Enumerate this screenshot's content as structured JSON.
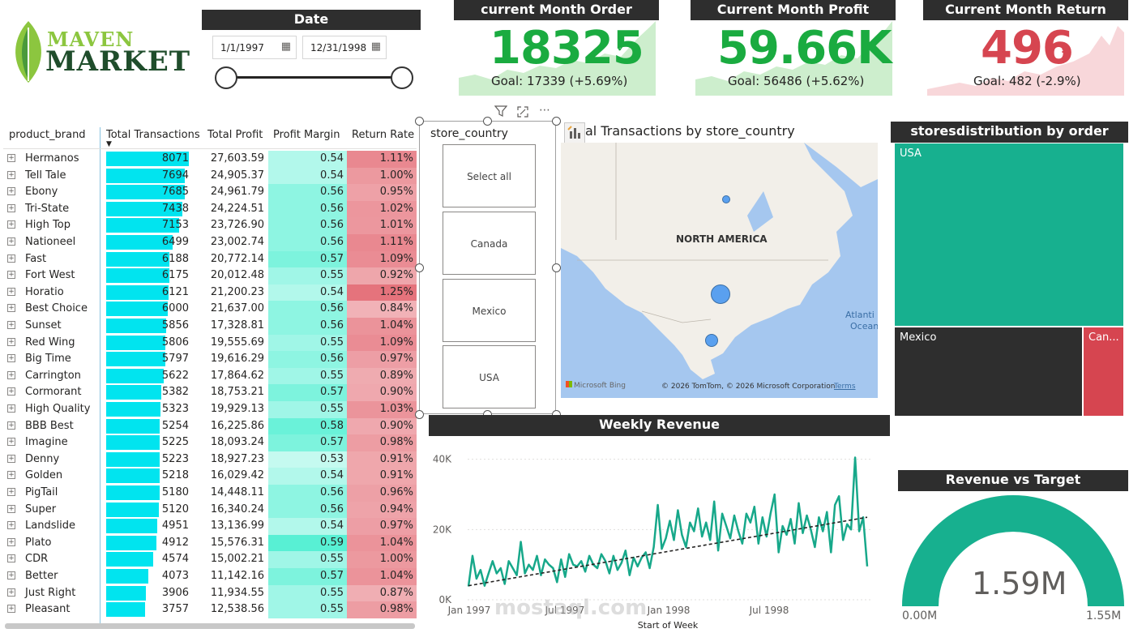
{
  "logo": {
    "line1": "MAVEN",
    "line2": "MARKET"
  },
  "date_slicer": {
    "title": "Date",
    "start": "1/1/1997",
    "end": "12/31/1998",
    "calendar_icon": "calendar-icon"
  },
  "kpis": [
    {
      "title": "current Month Order",
      "value": "18325",
      "status_mark": "✓",
      "goal": "Goal: 17339 (+5.69%)",
      "color": "#1aab40"
    },
    {
      "title": "Current Month Profit",
      "value": "59.66K",
      "status_mark": "✓",
      "goal": "Goal: 56486 (+5.62%)",
      "color": "#1aab40"
    },
    {
      "title": "Current Month Return",
      "value": "496",
      "status_mark": "!",
      "goal": "Goal: 482 (-2.9%)",
      "color": "#d64550"
    }
  ],
  "table": {
    "headers": [
      "product_brand",
      "Total Transactions",
      "Total Profit",
      "Profit Margin",
      "Return Rate"
    ],
    "sort_indicator": "▼",
    "expand_glyph": "+",
    "colors": {
      "bar": "#01e4ef",
      "margin": "#58f0d4",
      "return": "#e5737c"
    },
    "rows": [
      [
        "Hermanos",
        "8071",
        "27,603.59",
        "0.54",
        "1.11%"
      ],
      [
        "Tell Tale",
        "7694",
        "24,905.37",
        "0.54",
        "1.00%"
      ],
      [
        "Ebony",
        "7685",
        "24,961.79",
        "0.56",
        "0.95%"
      ],
      [
        "Tri-State",
        "7438",
        "24,224.51",
        "0.56",
        "1.02%"
      ],
      [
        "High Top",
        "7153",
        "23,726.90",
        "0.56",
        "1.01%"
      ],
      [
        "Nationeel",
        "6499",
        "23,002.74",
        "0.56",
        "1.11%"
      ],
      [
        "Fast",
        "6188",
        "20,772.14",
        "0.57",
        "1.09%"
      ],
      [
        "Fort West",
        "6175",
        "20,012.48",
        "0.55",
        "0.92%"
      ],
      [
        "Horatio",
        "6121",
        "21,200.23",
        "0.54",
        "1.25%"
      ],
      [
        "Best Choice",
        "6000",
        "21,637.00",
        "0.56",
        "0.84%"
      ],
      [
        "Sunset",
        "5856",
        "17,328.81",
        "0.56",
        "1.04%"
      ],
      [
        "Red Wing",
        "5806",
        "19,555.69",
        "0.55",
        "1.09%"
      ],
      [
        "Big Time",
        "5797",
        "19,616.29",
        "0.56",
        "0.97%"
      ],
      [
        "Carrington",
        "5622",
        "17,864.62",
        "0.55",
        "0.89%"
      ],
      [
        "Cormorant",
        "5382",
        "18,753.21",
        "0.57",
        "0.90%"
      ],
      [
        "High Quality",
        "5323",
        "19,929.13",
        "0.55",
        "1.03%"
      ],
      [
        "BBB Best",
        "5254",
        "16,225.86",
        "0.58",
        "0.90%"
      ],
      [
        "Imagine",
        "5225",
        "18,093.24",
        "0.57",
        "0.98%"
      ],
      [
        "Denny",
        "5223",
        "18,927.23",
        "0.53",
        "0.91%"
      ],
      [
        "Golden",
        "5218",
        "16,029.42",
        "0.54",
        "0.91%"
      ],
      [
        "PigTail",
        "5180",
        "14,448.11",
        "0.56",
        "0.96%"
      ],
      [
        "Super",
        "5120",
        "16,340.24",
        "0.56",
        "0.94%"
      ],
      [
        "Landslide",
        "4951",
        "13,136.99",
        "0.54",
        "0.97%"
      ],
      [
        "Plato",
        "4912",
        "15,576.31",
        "0.59",
        "1.04%"
      ],
      [
        "CDR",
        "4574",
        "15,002.21",
        "0.55",
        "1.00%"
      ],
      [
        "Better",
        "4073",
        "11,142.16",
        "0.57",
        "1.04%"
      ],
      [
        "Just Right",
        "3906",
        "11,934.55",
        "0.55",
        "0.87%"
      ],
      [
        "Pleasant",
        "3757",
        "12,538.56",
        "0.55",
        "0.98%"
      ]
    ]
  },
  "country_slicer": {
    "title": "store_country",
    "options": [
      "Select all",
      "Canada",
      "Mexico",
      "USA"
    ],
    "toolbar_icons": [
      "filter-icon",
      "focus-mode-icon",
      "more-options-icon"
    ]
  },
  "map": {
    "title": "al Transactions by store_country",
    "region_label": "NORTH AMERICA",
    "ocean_label_1": "Atlanti",
    "ocean_label_2": "Ocean",
    "credit_brand": "Microsoft Bing",
    "credit_text": "© 2026 TomTom, © 2026 Microsoft Corporation",
    "terms_link": "Terms"
  },
  "treemap": {
    "title": "storesdistribution by order",
    "items": [
      {
        "label": "USA",
        "color": "#17b08f"
      },
      {
        "label": "Mexico",
        "color": "#2e2e2e"
      },
      {
        "label": "Can...",
        "color": "#d64550"
      }
    ]
  },
  "gauge": {
    "title": "Revenue vs Target",
    "value_label": "1.59M",
    "min_label": "0.00M",
    "max_label": "1.55M",
    "fill_fraction": 1.0,
    "color": "#17b08f"
  },
  "watermark": "mostaql.com",
  "chart_data": {
    "type": "line",
    "title": "Weekly Revenue",
    "xlabel": "Start of Week",
    "ylabel": "",
    "x_tick_labels": [
      "Jan 1997",
      "Jul 1997",
      "Jan 1998",
      "Jul 1998"
    ],
    "y_tick_labels": [
      "0K",
      "20K",
      "40K"
    ],
    "ylim": [
      0,
      42000
    ],
    "grid": true,
    "series": [
      {
        "line_color": "#17a88a",
        "values": [
          3800,
          12500,
          6000,
          8500,
          4000,
          7500,
          11000,
          7500,
          9000,
          4500,
          11000,
          9000,
          7000,
          16500,
          7500,
          10000,
          8500,
          12500,
          7000,
          11500,
          10000,
          9000,
          5000,
          11500,
          6500,
          13000,
          10000,
          9500,
          11000,
          8000,
          12500,
          10000,
          9000,
          13000,
          11000,
          7500,
          12500,
          8500,
          10500,
          14000,
          7000,
          12000,
          9500,
          12000,
          13500,
          9000,
          15000,
          27000,
          14500,
          17500,
          22500,
          17000,
          25500,
          18500,
          15000,
          22000,
          19500,
          26000,
          18000,
          22000,
          17000,
          28000,
          14000,
          24500,
          21000,
          17500,
          24000,
          19500,
          16000,
          24500,
          22000,
          26500,
          16000,
          23500,
          18000,
          24500,
          30000,
          13500,
          21000,
          18500,
          23000,
          16000,
          27500,
          19000,
          24000,
          20000,
          15000,
          23500,
          19500,
          25000,
          13500,
          27000,
          29500,
          17000,
          21500,
          20000,
          40500,
          19500,
          23500,
          9500
        ]
      },
      {
        "name": "trend",
        "style": "dashed",
        "line_color": "#252423",
        "values": [
          4000,
          23500
        ]
      }
    ]
  }
}
